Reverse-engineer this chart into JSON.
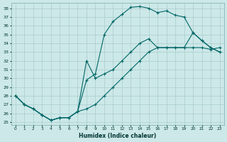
{
  "xlabel": "Humidex (Indice chaleur)",
  "bg_color": "#cce8e8",
  "grid_color": "#aacccc",
  "line_color": "#006666",
  "xlim": [
    -0.5,
    23.5
  ],
  "ylim": [
    24.7,
    38.6
  ],
  "yticks": [
    25,
    26,
    27,
    28,
    29,
    30,
    31,
    32,
    33,
    34,
    35,
    36,
    37,
    38
  ],
  "xticks": [
    0,
    1,
    2,
    3,
    4,
    5,
    6,
    7,
    8,
    9,
    10,
    11,
    12,
    13,
    14,
    15,
    16,
    17,
    18,
    19,
    20,
    21,
    22,
    23
  ],
  "curve_upper": {
    "x": [
      0,
      1,
      2,
      3,
      4,
      5,
      6,
      7,
      8,
      9,
      10,
      11,
      12,
      13,
      14,
      15,
      16,
      17,
      18,
      19,
      20,
      21,
      22,
      23
    ],
    "y": [
      28.0,
      27.0,
      26.5,
      25.8,
      25.2,
      25.5,
      25.5,
      26.2,
      29.8,
      30.5,
      35.0,
      36.5,
      37.3,
      38.1,
      38.2,
      38.0,
      37.5,
      37.7,
      37.2,
      37.0,
      35.2,
      34.3,
      33.5,
      33.0
    ]
  },
  "curve_lower": {
    "x": [
      0,
      1,
      2,
      3,
      4,
      5,
      6,
      7,
      8,
      9,
      10,
      11,
      12,
      13,
      14,
      15,
      16,
      17,
      18,
      19,
      20,
      21,
      22,
      23
    ],
    "y": [
      28.0,
      27.0,
      26.5,
      25.8,
      25.2,
      25.5,
      25.5,
      26.2,
      26.5,
      27.0,
      28.0,
      29.0,
      30.0,
      31.0,
      32.0,
      33.0,
      33.5,
      33.5,
      33.5,
      33.5,
      33.5,
      33.5,
      33.3,
      33.5
    ]
  },
  "curve_branch": {
    "x": [
      0,
      1,
      2,
      3,
      4,
      5,
      6,
      7,
      8,
      9,
      10,
      11,
      12,
      13,
      14,
      15,
      16,
      17,
      18,
      19,
      20,
      21,
      22,
      23
    ],
    "y": [
      28.0,
      27.0,
      26.5,
      25.8,
      25.2,
      25.5,
      25.5,
      26.2,
      32.0,
      30.0,
      30.5,
      31.0,
      32.0,
      33.0,
      34.0,
      34.5,
      33.5,
      33.5,
      33.5,
      33.5,
      35.2,
      34.3,
      33.5,
      33.0
    ]
  }
}
